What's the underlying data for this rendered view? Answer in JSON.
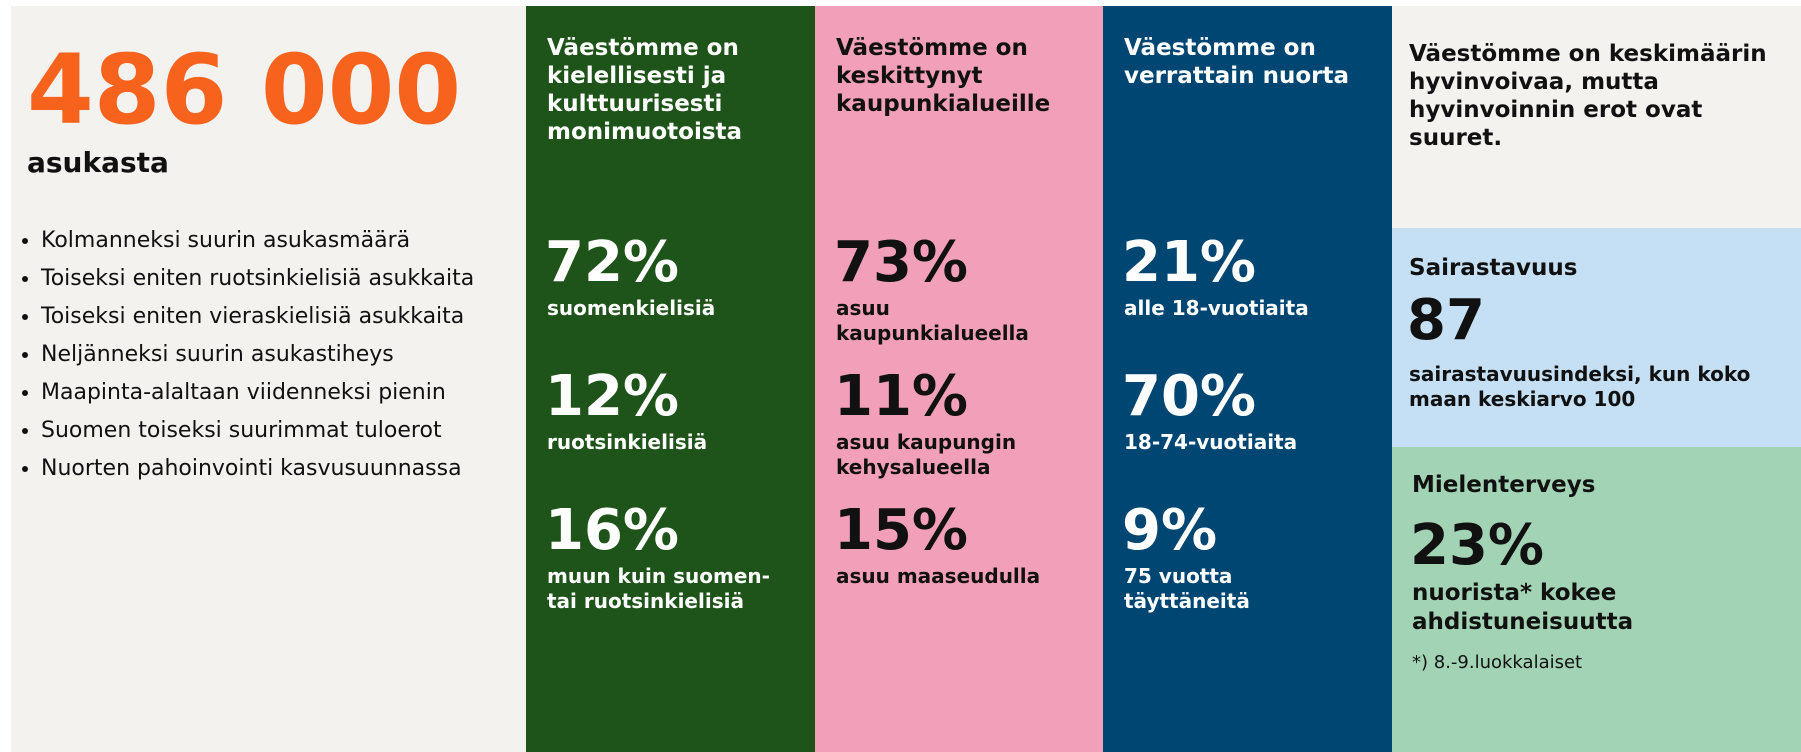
{
  "summary": {
    "population": "486 000",
    "population_label": "asukasta",
    "bullets": [
      "Kolmanneksi suurin asukasmäärä",
      "Toiseksi eniten ruotsinkielisiä asukkaita",
      "Toiseksi eniten vieraskielisiä asukkaita",
      "Neljänneksi suurin asukastiheys",
      "Maapinta-alaltaan viidenneksi pienin",
      "Suomen toiseksi suurimmat tuloerot",
      "Nuorten pahoinvointi kasvusuunnassa"
    ]
  },
  "columns": [
    {
      "heading": "Väestömme on kielellisesti ja kulttuurisesti monimuotoista",
      "stats": [
        {
          "value": "72%",
          "label": "suomenkielisiä"
        },
        {
          "value": "12%",
          "label": "ruotsinkielisiä"
        },
        {
          "value": "16%",
          "label": "muun kuin suomen- tai ruotsinkielisiä"
        }
      ]
    },
    {
      "heading": "Väestömme on keskittynyt kaupunkialueille",
      "stats": [
        {
          "value": "73%",
          "label": "asuu kaupunkialueella"
        },
        {
          "value": "11%",
          "label": "asuu kaupungin kehysalueella"
        },
        {
          "value": "15%",
          "label": "asuu maaseudulla"
        }
      ]
    },
    {
      "heading": "Väestömme on verrattain nuorta",
      "stats": [
        {
          "value": "21%",
          "label": "alle 18-vuotiaita"
        },
        {
          "value": "70%",
          "label": "18-74-vuotiaita"
        },
        {
          "value": "9%",
          "label": "75 vuotta täyttäneitä"
        }
      ]
    }
  ],
  "wellbeing": {
    "heading": "Väestömme on keskimäärin hyvinvoivaa, mutta hyvinvoinnin erot ovat suuret.",
    "morbidity": {
      "title": "Sairastavuus",
      "value": "87",
      "label": "sairastavuusindeksi, kun koko maan keskiarvo 100"
    },
    "mental_health": {
      "title": "Mielenterveys",
      "value": "23%",
      "label": "nuorista* kokee ahdistuneisuutta",
      "footnote": "*) 8.-9.luokkalaiset"
    }
  }
}
